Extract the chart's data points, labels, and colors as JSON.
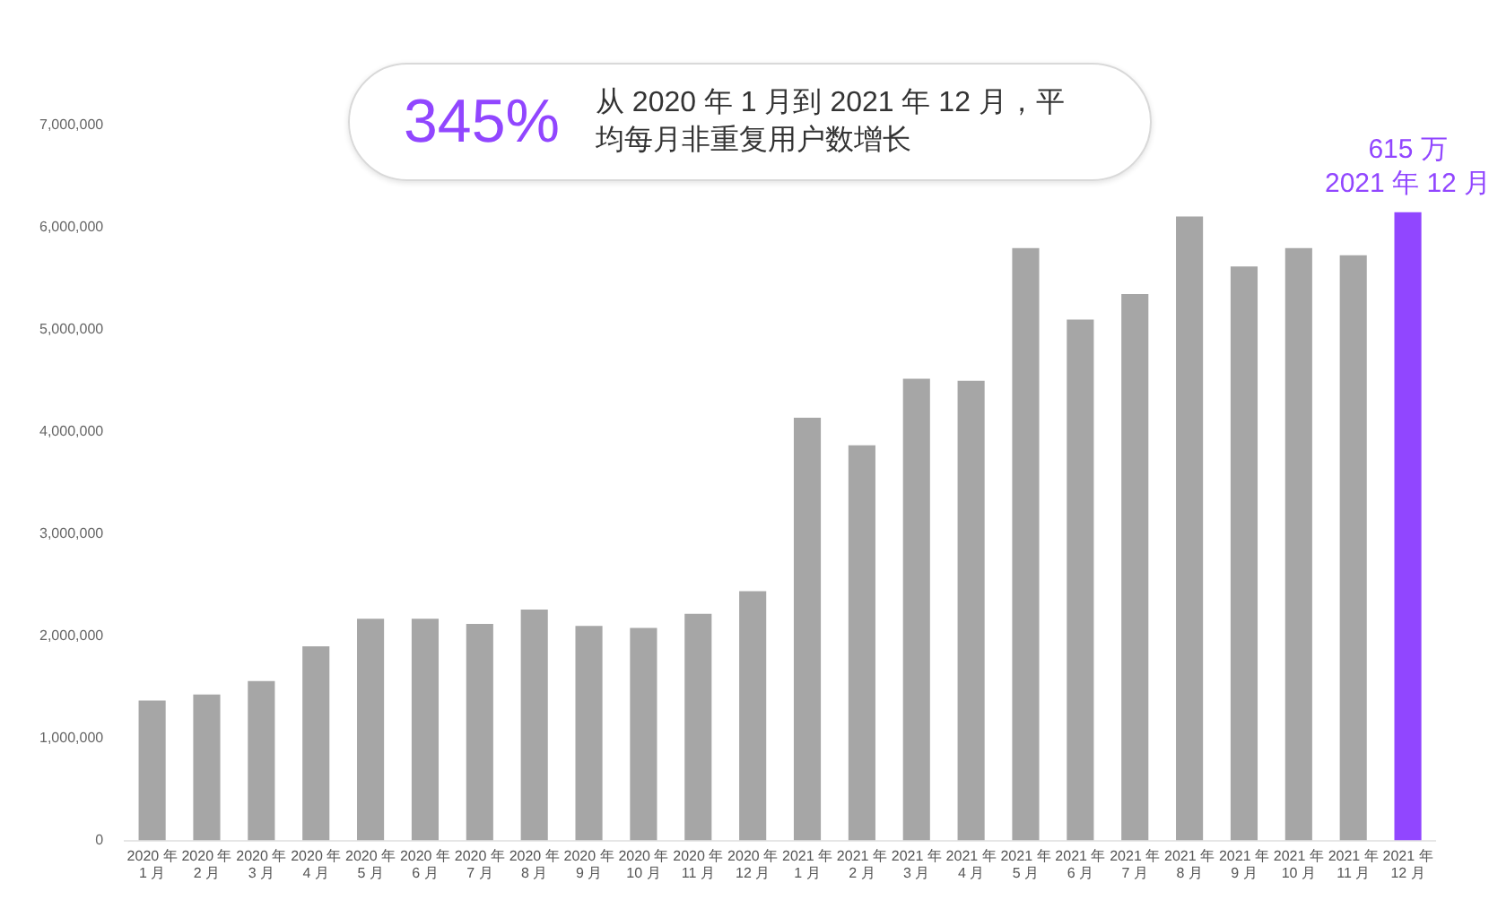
{
  "chart_data": {
    "type": "bar",
    "categories": [
      "2020 年 1 月",
      "2020 年 2 月",
      "2020 年 3 月",
      "2020 年 4 月",
      "2020 年 5 月",
      "2020 年 6 月",
      "2020 年 7 月",
      "2020 年 8 月",
      "2020 年 9 月",
      "2020 年 10 月",
      "2020 年 11 月",
      "2020 年 12 月",
      "2021 年 1 月",
      "2021 年 2 月",
      "2021 年 3 月",
      "2021 年 4 月",
      "2021 年 5 月",
      "2021 年 6 月",
      "2021 年 7 月",
      "2021 年 8 月",
      "2021 年 9 月",
      "2021 年 10 月",
      "2021 年 11 月",
      "2021 年 12 月"
    ],
    "values": [
      1370000,
      1430000,
      1560000,
      1900000,
      2170000,
      2170000,
      2120000,
      2260000,
      2100000,
      2080000,
      2220000,
      2440000,
      4140000,
      3870000,
      4520000,
      4500000,
      5800000,
      5100000,
      5350000,
      6110000,
      5620000,
      5800000,
      5730000,
      6150000
    ],
    "colors": [
      "#a6a6a6",
      "#a6a6a6",
      "#a6a6a6",
      "#a6a6a6",
      "#a6a6a6",
      "#a6a6a6",
      "#a6a6a6",
      "#a6a6a6",
      "#a6a6a6",
      "#a6a6a6",
      "#a6a6a6",
      "#a6a6a6",
      "#a6a6a6",
      "#a6a6a6",
      "#a6a6a6",
      "#a6a6a6",
      "#a6a6a6",
      "#a6a6a6",
      "#a6a6a6",
      "#a6a6a6",
      "#a6a6a6",
      "#a6a6a6",
      "#a6a6a6",
      "#9146ff"
    ],
    "ylim": [
      0,
      7000000
    ],
    "yticks": [
      0,
      {
        "value": 1000000,
        "label": "1,000,000"
      },
      {
        "value": 2000000,
        "label": "2,000,000"
      },
      {
        "value": 3000000,
        "label": "3,000,000"
      },
      {
        "value": 4000000,
        "label": "4,000,000"
      },
      {
        "value": 5000000,
        "label": "5,000,000"
      },
      {
        "value": 6000000,
        "label": "6,000,000"
      },
      {
        "value": 7000000,
        "label": "7,000,000"
      }
    ],
    "grid": false,
    "legend": false,
    "annotations": [
      "345%",
      "从 2020 年 1 月到 2021 年 12 月，平均每月非重复用户数增长",
      {
        "text": "615 万",
        "x": "2021 年 12 月",
        "y": 6150000
      },
      {
        "text": "2021 年 12 月",
        "x": "2021 年 12 月",
        "y": 6150000
      }
    ]
  }
}
